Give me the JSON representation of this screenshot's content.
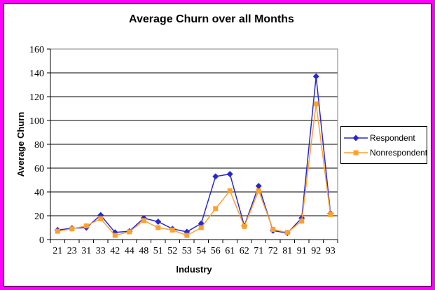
{
  "window": {
    "frame_color": "#FF00FF",
    "inner_border_color": "#000000",
    "background": "#FFFFFF"
  },
  "chart_data": {
    "type": "line",
    "title": "Average Churn over all Months",
    "xlabel": "Industry",
    "ylabel": "Average Churn",
    "categories": [
      "21",
      "23",
      "31",
      "33",
      "42",
      "44",
      "48",
      "51",
      "52",
      "53",
      "54",
      "56",
      "61",
      "62",
      "71",
      "72",
      "81",
      "91",
      "92",
      "93"
    ],
    "series": [
      {
        "name": "Respondent",
        "color": "#2828D0",
        "marker": "diamond",
        "values": [
          8,
          9.5,
          10,
          20.5,
          6,
          7,
          18,
          15,
          9,
          6.5,
          13.5,
          53,
          55,
          11.5,
          45,
          7.5,
          5.5,
          18,
          137,
          22
        ]
      },
      {
        "name": "Nonrespondent",
        "color": "#FFA02E",
        "marker": "square",
        "values": [
          7,
          9,
          11.5,
          17.5,
          3.5,
          6.5,
          16,
          10,
          8,
          3.5,
          10,
          26,
          41,
          11,
          41,
          8.5,
          6,
          15.5,
          114,
          21
        ]
      }
    ],
    "ylim": [
      0,
      160
    ],
    "yticks": [
      0,
      20,
      40,
      60,
      80,
      100,
      120,
      140,
      160
    ],
    "grid": true,
    "gridline_color": "#000000",
    "plot_border_color": "#808080",
    "axis_color": "#000000",
    "legend_position": "right"
  }
}
